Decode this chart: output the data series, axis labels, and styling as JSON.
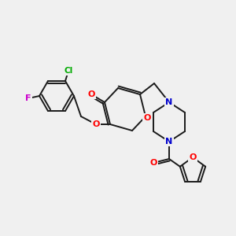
{
  "background_color": "#f0f0f0",
  "bond_color": "#1a1a1a",
  "atom_colors": {
    "O": "#ff0000",
    "N": "#0000cc",
    "Cl": "#00aa00",
    "F": "#cc00cc",
    "C": "#1a1a1a"
  }
}
